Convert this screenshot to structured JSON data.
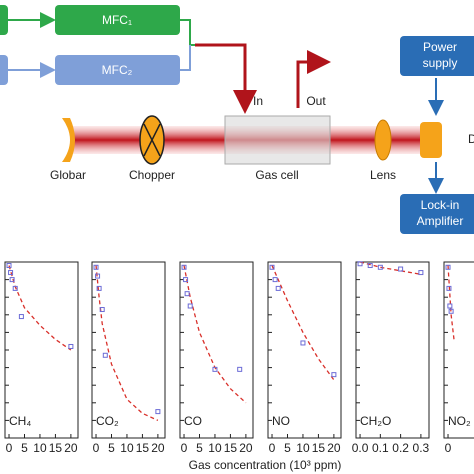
{
  "diagram": {
    "mfc1": "MFC₁",
    "mfc2": "MFC₂",
    "inlet": "In",
    "outlet": "Out",
    "source": "Globar",
    "chopper": "Chopper",
    "cell": "Gas cell",
    "lens": "Lens",
    "power": [
      "Power",
      "supply"
    ],
    "lockin": [
      "Lock-in",
      "Amplifier"
    ],
    "detector": "D"
  },
  "xlabel": "Gas concentration (10³ ppm)",
  "chart_data": [
    {
      "type": "scatter",
      "title": "CH₄",
      "color": "#6b6bd6",
      "x": [
        0,
        0.5,
        1,
        2,
        4,
        20
      ],
      "values": [
        0.98,
        0.94,
        0.9,
        0.85,
        0.69,
        0.52
      ],
      "fit": {
        "color": "#d9302a",
        "x": [
          0,
          2,
          5,
          10,
          15,
          20
        ],
        "values": [
          0.98,
          0.86,
          0.74,
          0.64,
          0.56,
          0.5
        ]
      },
      "xlim": [
        -1.3,
        22.3
      ],
      "xticks": [
        0,
        5,
        10,
        15,
        20
      ],
      "ylim": [
        0,
        1
      ]
    },
    {
      "type": "scatter",
      "title": "CO₂",
      "color": "#6b6bd6",
      "x": [
        0,
        0.5,
        1,
        2,
        3,
        20
      ],
      "values": [
        0.97,
        0.92,
        0.85,
        0.73,
        0.47,
        0.15
      ],
      "fit": {
        "color": "#d9302a",
        "x": [
          0,
          1,
          2,
          5,
          10,
          15,
          20
        ],
        "values": [
          0.98,
          0.8,
          0.65,
          0.42,
          0.22,
          0.14,
          0.1
        ]
      },
      "xlim": [
        -1.3,
        22.3
      ],
      "xticks": [
        0,
        5,
        10,
        15,
        20
      ],
      "ylim": [
        0,
        1
      ]
    },
    {
      "type": "scatter",
      "title": "CO",
      "color": "#6b6bd6",
      "x": [
        0,
        0.5,
        1,
        2,
        10,
        18
      ],
      "values": [
        0.97,
        0.9,
        0.82,
        0.75,
        0.39,
        0.39
      ],
      "fit": {
        "color": "#d9302a",
        "x": [
          0,
          2,
          5,
          10,
          15,
          20
        ],
        "values": [
          0.98,
          0.8,
          0.6,
          0.4,
          0.28,
          0.2
        ]
      },
      "xlim": [
        -1.3,
        22.3
      ],
      "xticks": [
        0,
        5,
        10,
        15,
        20
      ],
      "ylim": [
        0,
        1
      ]
    },
    {
      "type": "scatter",
      "title": "NO",
      "color": "#6b6bd6",
      "x": [
        0,
        1,
        2,
        10,
        20
      ],
      "values": [
        0.97,
        0.9,
        0.85,
        0.54,
        0.36
      ],
      "fit": {
        "color": "#d9302a",
        "x": [
          0,
          5,
          10,
          15,
          20
        ],
        "values": [
          0.98,
          0.78,
          0.6,
          0.45,
          0.33
        ]
      },
      "xlim": [
        -1.3,
        22.3
      ],
      "xticks": [
        0,
        5,
        10,
        15,
        20
      ],
      "ylim": [
        0,
        1
      ]
    },
    {
      "type": "scatter",
      "title": "CH₂O",
      "color": "#6b6bd6",
      "x": [
        0,
        0.05,
        0.1,
        0.2,
        0.3
      ],
      "values": [
        0.99,
        0.98,
        0.97,
        0.96,
        0.94
      ],
      "fit": {
        "color": "#d9302a",
        "x": [
          0,
          0.1,
          0.2,
          0.3
        ],
        "values": [
          1,
          0.97,
          0.95,
          0.93
        ]
      },
      "xlim": [
        -0.02,
        0.34
      ],
      "xticks": [
        {
          "value": 0,
          "label": "0.0"
        },
        0.1,
        0.2,
        0.3
      ],
      "ylim": [
        0,
        1
      ]
    },
    {
      "type": "scatter",
      "title": "NO₂",
      "color": "#6b6bd6",
      "x": [
        0,
        0.3,
        0.6,
        1
      ],
      "values": [
        0.97,
        0.85,
        0.75,
        0.72
      ],
      "fit": {
        "color": "#d9302a",
        "x": [
          0,
          1,
          2
        ],
        "values": [
          0.98,
          0.7,
          0.55
        ]
      },
      "xlim": [
        -1.3,
        22.3
      ],
      "xticks": [
        0
      ],
      "ylim": [
        0,
        1
      ]
    }
  ]
}
